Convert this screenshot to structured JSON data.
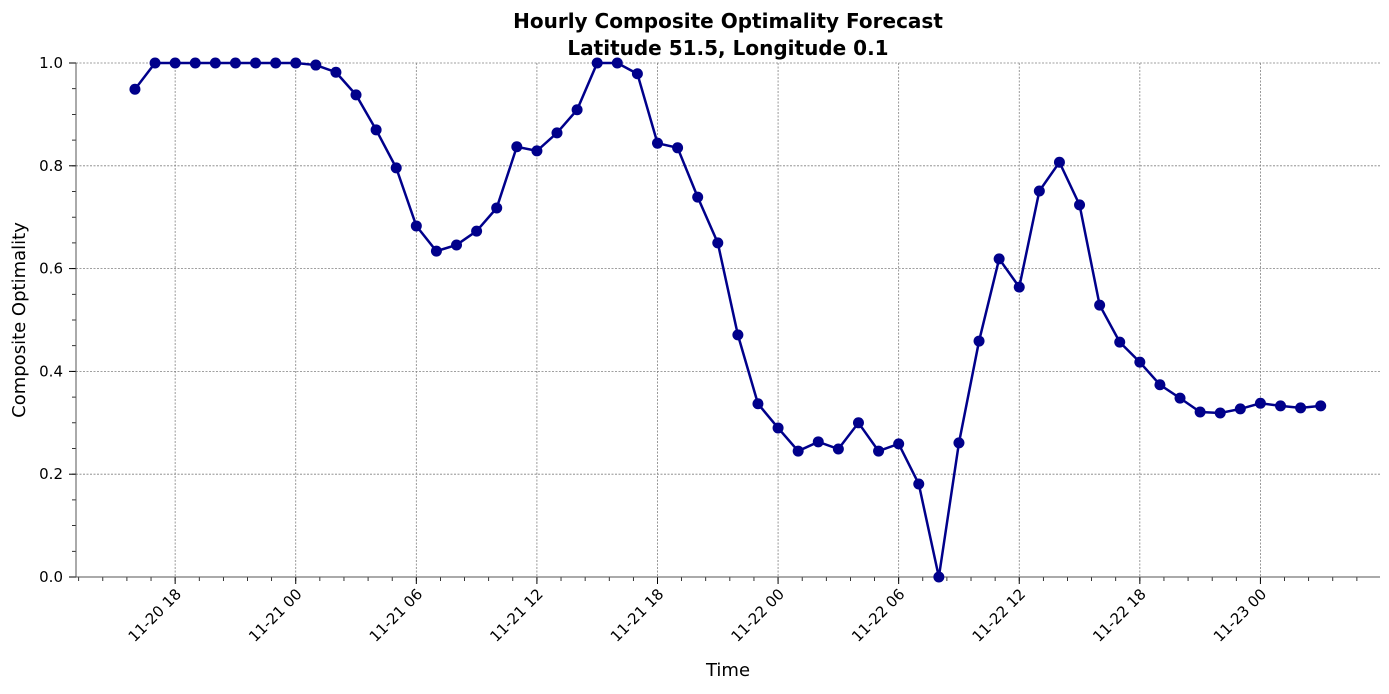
{
  "chart_data": {
    "type": "line",
    "title": "Hourly Composite Optimality Forecast",
    "subtitle": "Latitude 51.5, Longitude 0.1",
    "xlabel": "Time",
    "ylabel": "Composite Optimality",
    "ylim": [
      0,
      1
    ],
    "xlim": [
      "11-20 13:04",
      "11-23 05:57"
    ],
    "grid": true,
    "legend": "none",
    "colors": {
      "series": "#00008b",
      "grid": "#808080"
    },
    "x_ticks": [
      "11-20 18",
      "11-21 00",
      "11-21 06",
      "11-21 12",
      "11-21 18",
      "11-22 00",
      "11-22 06",
      "11-22 12",
      "11-22 18",
      "11-23 00"
    ],
    "y_ticks": [
      "0.0",
      "0.2",
      "0.4",
      "0.6",
      "0.8",
      "1.0"
    ],
    "series": [
      {
        "name": "Composite Optimality",
        "start": "11-20 16:00",
        "step_hours": 1,
        "values": [
          0.949,
          1.0,
          1.0,
          1.0,
          1.0,
          1.0,
          1.0,
          1.0,
          1.0,
          0.996,
          0.982,
          0.938,
          0.87,
          0.796,
          0.683,
          0.634,
          0.646,
          0.673,
          0.718,
          0.837,
          0.829,
          0.864,
          0.909,
          1.0,
          1.0,
          0.979,
          0.844,
          0.835,
          0.739,
          0.65,
          0.471,
          0.337,
          0.29,
          0.245,
          0.263,
          0.249,
          0.3,
          0.245,
          0.259,
          0.181,
          0.0,
          0.261,
          0.459,
          0.619,
          0.564,
          0.751,
          0.807,
          0.724,
          0.529,
          0.457,
          0.418,
          0.374,
          0.348,
          0.321,
          0.319,
          0.327,
          0.338,
          0.333,
          0.329,
          0.333
        ]
      }
    ]
  }
}
